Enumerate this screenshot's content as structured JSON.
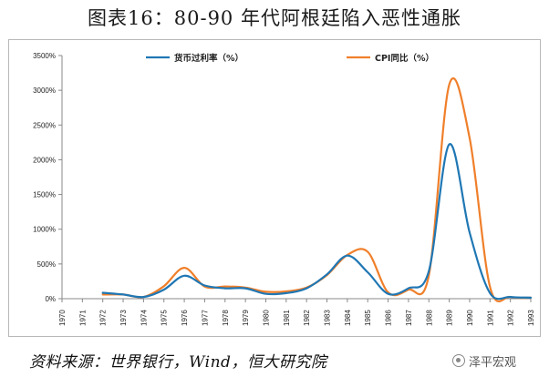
{
  "title": "图表16：80-90 年代阿根廷陷入恶性通胀",
  "source": "资料来源：世界银行，Wind，恒大研究院",
  "watermark": {
    "icon": "wechat-logo-icon",
    "text": "泽平宏观"
  },
  "colors": {
    "deposit": "#1f77b4",
    "cpi": "#f07f2a",
    "axis": "#888888",
    "text": "#222222"
  },
  "chart_data": {
    "type": "line",
    "title": "",
    "xlabel": "",
    "ylabel": "",
    "ylim": [
      0,
      3500
    ],
    "yticks": [
      "0%",
      "500%",
      "1000%",
      "1500%",
      "2000%",
      "2500%",
      "3000%",
      "3500%"
    ],
    "ytick_values": [
      0,
      500,
      1000,
      1500,
      2000,
      2500,
      3000,
      3500
    ],
    "x": [
      "1970",
      "1971",
      "1972",
      "1973",
      "1974",
      "1975",
      "1976",
      "1977",
      "1978",
      "1979",
      "1980",
      "1981",
      "1982",
      "1983",
      "1984",
      "1985",
      "1986",
      "1987",
      "1988",
      "1989",
      "1990",
      "1991",
      "1992",
      "1993"
    ],
    "legend_position": "top",
    "series": [
      {
        "name": "货币过利率（%）",
        "values": [
          null,
          null,
          85,
          60,
          25,
          130,
          330,
          190,
          150,
          150,
          70,
          80,
          150,
          350,
          620,
          380,
          70,
          150,
          400,
          2220,
          950,
          80,
          25,
          15
        ]
      },
      {
        "name": "CPI同比（%）",
        "values": [
          null,
          null,
          60,
          60,
          25,
          180,
          445,
          175,
          175,
          160,
          100,
          105,
          160,
          340,
          630,
          675,
          90,
          130,
          340,
          3080,
          2310,
          170,
          25,
          15
        ]
      }
    ]
  }
}
